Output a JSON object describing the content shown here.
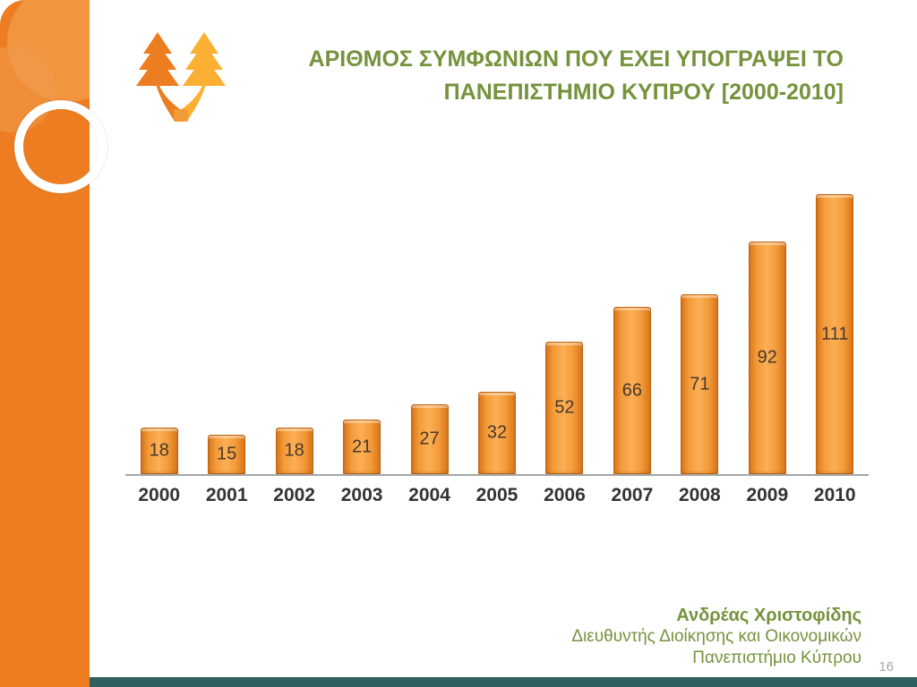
{
  "slide": {
    "title_line1": "ΑΡΙΘΜΟΣ ΣΥΜΦΩΝΙΩΝ ΠΟΥ ΕΧΕΙ ΥΠΟΓΡΑΨΕΙ ΤΟ",
    "title_line2": "ΠΑΝΕΠΙΣΤΗΜΙΟ ΚΥΠΡΟΥ [2000-2010]",
    "page_number": "16",
    "footer": {
      "name": "Ανδρέας Χριστοφίδης",
      "role": "Διευθυντής Διοίκησης και Οικονομικών",
      "org": "Πανεπιστήμιο Κύπρου"
    }
  },
  "icons": {
    "logo": "university-of-cyprus-trees-logo",
    "ring": "white-ring-decoration",
    "circles": "orange-circle-decoration"
  },
  "colors": {
    "band_orange": "#EE7D22",
    "bar_orange": "#F39B3A",
    "bar_border": "#BC6312",
    "title_green": "#76923C",
    "footer_green": "#76923C",
    "axis_gray": "#A6A6A6",
    "bottom_bar_teal": "#2E6060",
    "page_number_gray": "#A6A6A6",
    "data_label": "#4A382B"
  },
  "chart_data": {
    "type": "bar",
    "categories": [
      "2000",
      "2001",
      "2002",
      "2003",
      "2004",
      "2005",
      "2006",
      "2007",
      "2008",
      "2009",
      "2010"
    ],
    "values": [
      18,
      15,
      18,
      21,
      27,
      32,
      52,
      66,
      71,
      92,
      111
    ],
    "title": "",
    "xlabel": "",
    "ylabel": "",
    "ylim": [
      0,
      115
    ],
    "grid": false,
    "legend": false,
    "data_labels": "centered-inside-bars",
    "bar_color": "#F39B3A"
  }
}
